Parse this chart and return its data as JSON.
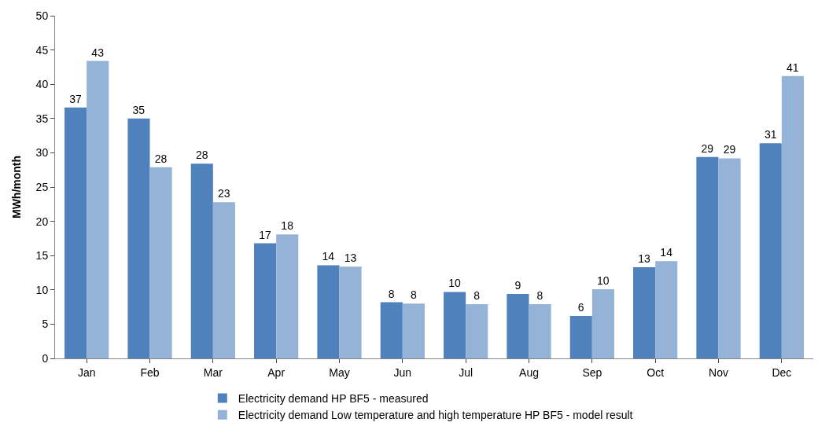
{
  "chart_data": {
    "type": "bar",
    "ylabel": "MWh/month",
    "categories": [
      "Jan",
      "Feb",
      "Mar",
      "Apr",
      "May",
      "Jun",
      "Jul",
      "Aug",
      "Sep",
      "Oct",
      "Nov",
      "Dec"
    ],
    "series": [
      {
        "name": "Electricity demand HP BF5 - measured",
        "color": "#4f81bd",
        "values": [
          36.6,
          35.0,
          28.4,
          16.8,
          13.6,
          8.2,
          9.7,
          9.4,
          6.2,
          13.3,
          29.4,
          31.4
        ],
        "value_labels": [
          "37",
          "35",
          "28",
          "17",
          "14",
          "8",
          "10",
          "9",
          "6",
          "13",
          "29",
          "31"
        ]
      },
      {
        "name": "Electricity demand Low temperature and high temperature HP BF5 - model result",
        "color": "#95b3d7",
        "values": [
          43.4,
          27.9,
          22.8,
          18.1,
          13.4,
          8.0,
          7.9,
          7.9,
          10.1,
          14.2,
          29.2,
          41.2
        ],
        "value_labels": [
          "43",
          "28",
          "23",
          "18",
          "13",
          "8",
          "8",
          "8",
          "10",
          "14",
          "29",
          "41"
        ]
      }
    ],
    "ylim": [
      0,
      50
    ],
    "yticks": [
      0,
      5,
      10,
      15,
      20,
      25,
      30,
      35,
      40,
      45,
      50
    ],
    "legend": "bottom"
  }
}
